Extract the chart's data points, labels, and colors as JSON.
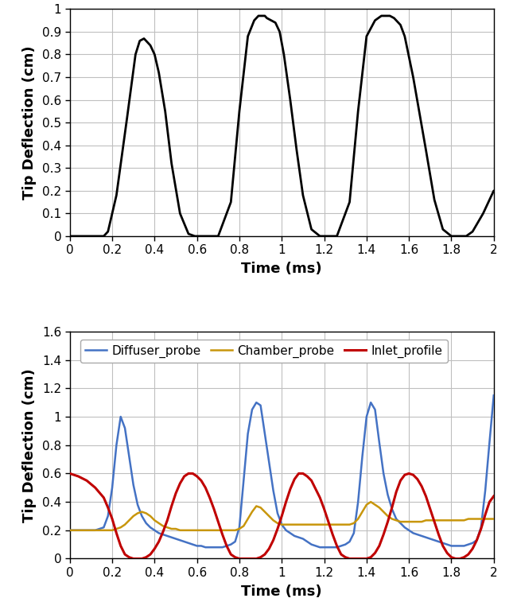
{
  "top_plot": {
    "ylabel": "Tip Deflection (cm)",
    "xlabel": "Time (ms)",
    "xlim": [
      0,
      2
    ],
    "ylim": [
      0,
      1
    ],
    "yticks": [
      0,
      0.1,
      0.2,
      0.3,
      0.4,
      0.5,
      0.6,
      0.7,
      0.8,
      0.9,
      1.0
    ],
    "xticks": [
      0,
      0.2,
      0.4,
      0.6,
      0.8,
      1.0,
      1.2,
      1.4,
      1.6,
      1.8,
      2.0
    ],
    "line_color": "#000000",
    "line_width": 2.0,
    "x": [
      0,
      0.08,
      0.14,
      0.16,
      0.18,
      0.22,
      0.27,
      0.31,
      0.33,
      0.35,
      0.37,
      0.38,
      0.4,
      0.42,
      0.45,
      0.48,
      0.52,
      0.56,
      0.59,
      0.61,
      0.62,
      0.63,
      0.64,
      0.7,
      0.76,
      0.8,
      0.84,
      0.87,
      0.89,
      0.91,
      0.92,
      0.93,
      0.95,
      0.97,
      0.99,
      1.01,
      1.04,
      1.07,
      1.1,
      1.14,
      1.18,
      1.2,
      1.21,
      1.22,
      1.26,
      1.32,
      1.36,
      1.4,
      1.44,
      1.47,
      1.49,
      1.51,
      1.53,
      1.54,
      1.55,
      1.56,
      1.58,
      1.62,
      1.68,
      1.72,
      1.76,
      1.8,
      1.84,
      1.87,
      1.9,
      1.95,
      2.0
    ],
    "y": [
      0,
      0,
      0,
      0,
      0.02,
      0.18,
      0.52,
      0.8,
      0.86,
      0.87,
      0.85,
      0.84,
      0.8,
      0.72,
      0.55,
      0.32,
      0.1,
      0.01,
      0,
      0,
      0,
      0,
      0,
      0,
      0.15,
      0.55,
      0.88,
      0.95,
      0.97,
      0.97,
      0.97,
      0.96,
      0.95,
      0.94,
      0.9,
      0.8,
      0.6,
      0.38,
      0.18,
      0.03,
      0,
      0,
      0,
      0,
      0,
      0.15,
      0.55,
      0.88,
      0.95,
      0.97,
      0.97,
      0.97,
      0.96,
      0.95,
      0.94,
      0.93,
      0.88,
      0.7,
      0.38,
      0.16,
      0.03,
      0,
      0,
      0,
      0.02,
      0.1,
      0.2
    ]
  },
  "bottom_plot": {
    "ylabel": "Tip Deflection (cm)",
    "xlabel": "Time (ms)",
    "xlim": [
      0,
      2
    ],
    "ylim": [
      0,
      1.6
    ],
    "yticks": [
      0,
      0.2,
      0.4,
      0.6,
      0.8,
      1.0,
      1.2,
      1.4,
      1.6
    ],
    "xticks": [
      0,
      0.2,
      0.4,
      0.6,
      0.8,
      1.0,
      1.2,
      1.4,
      1.6,
      1.8,
      2.0
    ],
    "legend_labels": [
      "Diffuser_probe",
      "Chamber_probe",
      "Inlet_profile"
    ],
    "legend_colors": [
      "#4472C4",
      "#C8960C",
      "#C00000"
    ],
    "diffuser_x": [
      0,
      0.04,
      0.08,
      0.12,
      0.16,
      0.18,
      0.2,
      0.22,
      0.24,
      0.26,
      0.28,
      0.3,
      0.32,
      0.34,
      0.36,
      0.38,
      0.4,
      0.42,
      0.44,
      0.46,
      0.48,
      0.5,
      0.52,
      0.54,
      0.56,
      0.58,
      0.6,
      0.62,
      0.64,
      0.66,
      0.68,
      0.7,
      0.72,
      0.74,
      0.76,
      0.78,
      0.8,
      0.82,
      0.84,
      0.86,
      0.88,
      0.9,
      0.92,
      0.94,
      0.96,
      0.98,
      1.0,
      1.02,
      1.04,
      1.06,
      1.08,
      1.1,
      1.12,
      1.14,
      1.16,
      1.18,
      1.2,
      1.22,
      1.24,
      1.26,
      1.28,
      1.3,
      1.32,
      1.34,
      1.36,
      1.38,
      1.4,
      1.42,
      1.44,
      1.46,
      1.48,
      1.5,
      1.52,
      1.54,
      1.56,
      1.58,
      1.6,
      1.62,
      1.64,
      1.66,
      1.68,
      1.7,
      1.72,
      1.74,
      1.76,
      1.78,
      1.8,
      1.82,
      1.84,
      1.86,
      1.88,
      1.9,
      1.92,
      1.94,
      1.96,
      1.98,
      2.0
    ],
    "diffuser_y": [
      0.2,
      0.2,
      0.2,
      0.2,
      0.22,
      0.3,
      0.5,
      0.8,
      1.0,
      0.92,
      0.72,
      0.52,
      0.38,
      0.3,
      0.25,
      0.22,
      0.2,
      0.18,
      0.17,
      0.16,
      0.15,
      0.14,
      0.13,
      0.12,
      0.11,
      0.1,
      0.09,
      0.09,
      0.08,
      0.08,
      0.08,
      0.08,
      0.08,
      0.09,
      0.1,
      0.12,
      0.22,
      0.55,
      0.88,
      1.05,
      1.1,
      1.08,
      0.88,
      0.68,
      0.48,
      0.32,
      0.24,
      0.2,
      0.18,
      0.16,
      0.15,
      0.14,
      0.12,
      0.1,
      0.09,
      0.08,
      0.08,
      0.08,
      0.08,
      0.08,
      0.09,
      0.1,
      0.12,
      0.18,
      0.4,
      0.72,
      1.0,
      1.1,
      1.05,
      0.82,
      0.6,
      0.45,
      0.35,
      0.28,
      0.25,
      0.22,
      0.2,
      0.18,
      0.17,
      0.16,
      0.15,
      0.14,
      0.13,
      0.12,
      0.11,
      0.1,
      0.09,
      0.09,
      0.09,
      0.09,
      0.1,
      0.11,
      0.13,
      0.22,
      0.48,
      0.82,
      1.15
    ],
    "chamber_x": [
      0,
      0.04,
      0.08,
      0.12,
      0.16,
      0.18,
      0.2,
      0.22,
      0.24,
      0.26,
      0.28,
      0.3,
      0.32,
      0.34,
      0.36,
      0.38,
      0.4,
      0.42,
      0.44,
      0.46,
      0.48,
      0.5,
      0.52,
      0.54,
      0.56,
      0.58,
      0.6,
      0.62,
      0.64,
      0.66,
      0.68,
      0.7,
      0.72,
      0.74,
      0.76,
      0.78,
      0.8,
      0.82,
      0.84,
      0.86,
      0.88,
      0.9,
      0.92,
      0.94,
      0.96,
      0.98,
      1.0,
      1.02,
      1.04,
      1.06,
      1.08,
      1.1,
      1.12,
      1.14,
      1.16,
      1.18,
      1.2,
      1.22,
      1.24,
      1.26,
      1.28,
      1.3,
      1.32,
      1.34,
      1.36,
      1.38,
      1.4,
      1.42,
      1.44,
      1.46,
      1.48,
      1.5,
      1.52,
      1.54,
      1.56,
      1.58,
      1.6,
      1.62,
      1.64,
      1.66,
      1.68,
      1.7,
      1.72,
      1.74,
      1.76,
      1.78,
      1.8,
      1.82,
      1.84,
      1.86,
      1.88,
      1.9,
      1.92,
      1.94,
      1.96,
      1.98,
      2.0
    ],
    "chamber_y": [
      0.2,
      0.2,
      0.2,
      0.2,
      0.2,
      0.2,
      0.2,
      0.21,
      0.22,
      0.24,
      0.27,
      0.3,
      0.32,
      0.33,
      0.32,
      0.3,
      0.27,
      0.25,
      0.23,
      0.22,
      0.21,
      0.21,
      0.2,
      0.2,
      0.2,
      0.2,
      0.2,
      0.2,
      0.2,
      0.2,
      0.2,
      0.2,
      0.2,
      0.2,
      0.2,
      0.2,
      0.21,
      0.23,
      0.28,
      0.33,
      0.37,
      0.36,
      0.33,
      0.3,
      0.27,
      0.25,
      0.24,
      0.24,
      0.24,
      0.24,
      0.24,
      0.24,
      0.24,
      0.24,
      0.24,
      0.24,
      0.24,
      0.24,
      0.24,
      0.24,
      0.24,
      0.24,
      0.24,
      0.25,
      0.28,
      0.33,
      0.38,
      0.4,
      0.38,
      0.36,
      0.33,
      0.3,
      0.28,
      0.27,
      0.26,
      0.26,
      0.26,
      0.26,
      0.26,
      0.26,
      0.27,
      0.27,
      0.27,
      0.27,
      0.27,
      0.27,
      0.27,
      0.27,
      0.27,
      0.27,
      0.28,
      0.28,
      0.28,
      0.28,
      0.28,
      0.28,
      0.28
    ],
    "inlet_x": [
      0,
      0.04,
      0.08,
      0.12,
      0.16,
      0.18,
      0.2,
      0.22,
      0.24,
      0.26,
      0.28,
      0.3,
      0.32,
      0.34,
      0.36,
      0.38,
      0.4,
      0.42,
      0.44,
      0.46,
      0.48,
      0.5,
      0.52,
      0.54,
      0.56,
      0.58,
      0.6,
      0.62,
      0.64,
      0.66,
      0.68,
      0.7,
      0.72,
      0.74,
      0.76,
      0.78,
      0.8,
      0.82,
      0.84,
      0.86,
      0.88,
      0.9,
      0.92,
      0.94,
      0.96,
      0.98,
      1.0,
      1.02,
      1.04,
      1.06,
      1.08,
      1.1,
      1.12,
      1.14,
      1.16,
      1.18,
      1.2,
      1.22,
      1.24,
      1.26,
      1.28,
      1.3,
      1.32,
      1.34,
      1.36,
      1.38,
      1.4,
      1.42,
      1.44,
      1.46,
      1.48,
      1.5,
      1.52,
      1.54,
      1.56,
      1.58,
      1.6,
      1.62,
      1.64,
      1.66,
      1.68,
      1.7,
      1.72,
      1.74,
      1.76,
      1.78,
      1.8,
      1.82,
      1.84,
      1.86,
      1.88,
      1.9,
      1.92,
      1.94,
      1.96,
      1.98,
      2.0
    ],
    "inlet_y": [
      0.6,
      0.58,
      0.55,
      0.5,
      0.43,
      0.36,
      0.28,
      0.18,
      0.09,
      0.03,
      0.01,
      0.0,
      0.0,
      0.0,
      0.01,
      0.03,
      0.07,
      0.12,
      0.19,
      0.27,
      0.37,
      0.46,
      0.53,
      0.58,
      0.6,
      0.6,
      0.58,
      0.55,
      0.5,
      0.43,
      0.35,
      0.26,
      0.17,
      0.09,
      0.03,
      0.01,
      0.0,
      0.0,
      0.0,
      0.0,
      0.0,
      0.01,
      0.03,
      0.07,
      0.13,
      0.21,
      0.3,
      0.4,
      0.49,
      0.56,
      0.6,
      0.6,
      0.58,
      0.55,
      0.49,
      0.43,
      0.35,
      0.26,
      0.17,
      0.09,
      0.03,
      0.01,
      0.0,
      0.0,
      0.0,
      0.0,
      0.0,
      0.01,
      0.04,
      0.09,
      0.17,
      0.26,
      0.36,
      0.47,
      0.55,
      0.59,
      0.6,
      0.59,
      0.56,
      0.51,
      0.44,
      0.35,
      0.26,
      0.17,
      0.09,
      0.04,
      0.01,
      0.0,
      0.0,
      0.01,
      0.03,
      0.07,
      0.13,
      0.21,
      0.31,
      0.4,
      0.44
    ]
  },
  "bg_color": "#ffffff",
  "grid_color": "#bfbfbf",
  "tick_fontsize": 11,
  "label_fontsize": 13,
  "legend_fontsize": 11
}
